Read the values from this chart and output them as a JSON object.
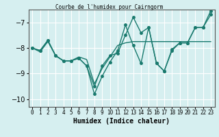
{
  "title": "Courbe de l'humidex pour Cairngorm",
  "xlabel": "Humidex (Indice chaleur)",
  "ylabel": "",
  "background_color": "#d6eff0",
  "grid_color": "#ffffff",
  "line_color": "#1a7a6e",
  "x": [
    0,
    1,
    2,
    3,
    4,
    5,
    6,
    7,
    8,
    9,
    10,
    11,
    12,
    13,
    14,
    15,
    16,
    17,
    18,
    19,
    20,
    21,
    22,
    23
  ],
  "series1": [
    -8.0,
    -8.1,
    -7.7,
    -8.3,
    -8.5,
    -8.5,
    -8.4,
    -8.7,
    -9.5,
    -8.7,
    -8.3,
    -8.2,
    -7.5,
    -6.8,
    -7.4,
    -7.2,
    -8.6,
    -8.9,
    -8.1,
    -7.8,
    -7.8,
    -7.2,
    -7.2,
    -6.7
  ],
  "series2": [
    -8.0,
    -8.15,
    -7.75,
    -8.3,
    -8.5,
    -8.5,
    -8.35,
    -8.45,
    -9.4,
    -8.8,
    -8.35,
    -7.9,
    -7.8,
    -7.75,
    -7.75,
    -7.75,
    -7.75,
    -7.75,
    -7.75,
    -7.75,
    -7.75,
    -7.75,
    -7.75,
    -7.75
  ],
  "series3": [
    -8.0,
    -8.1,
    -7.7,
    -8.3,
    -8.5,
    -8.5,
    -8.4,
    -8.7,
    -9.8,
    -9.1,
    -8.55,
    -8.1,
    -7.1,
    -7.9,
    -8.6,
    -7.2,
    -8.6,
    -8.9,
    -8.05,
    -7.8,
    -7.8,
    -7.2,
    -7.2,
    -6.55
  ],
  "ylim": [
    -10.3,
    -6.5
  ],
  "yticks": [
    -10,
    -9,
    -8,
    -7
  ],
  "xlim": [
    -0.5,
    23.5
  ]
}
